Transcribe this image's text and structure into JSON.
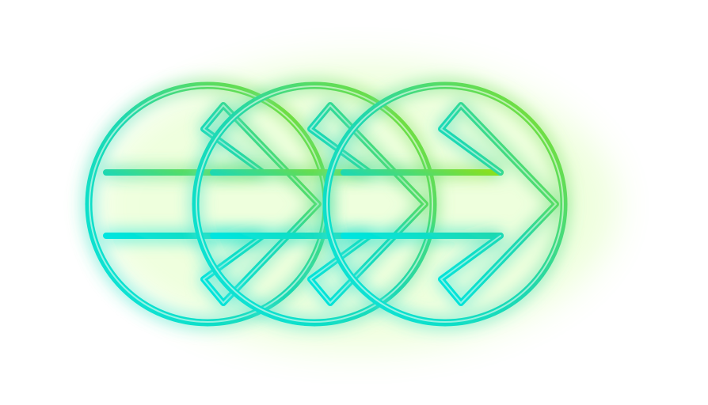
{
  "graphic": {
    "icon_name": "fast-forward-circle-arrows-icon",
    "icon_count": 3,
    "colors": {
      "background": "#ffffff",
      "gradient_start": "#00e5e0",
      "gradient_mid": "#1fd8b0",
      "gradient_end": "#8ee019",
      "glow": "#a6ff4a",
      "highlight": "#f4fff2"
    }
  }
}
